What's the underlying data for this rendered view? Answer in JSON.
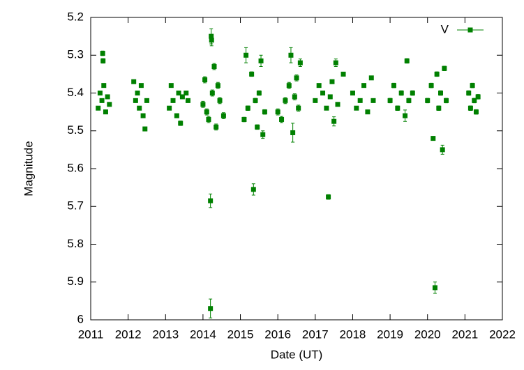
{
  "chart_data": {
    "type": "scatter",
    "xlabel": "Date (UT)",
    "ylabel": "Magnitude",
    "xlim": [
      2011,
      2022
    ],
    "xticks": [
      2011,
      2012,
      2013,
      2014,
      2015,
      2016,
      2017,
      2018,
      2019,
      2020,
      2021,
      2022
    ],
    "ylim": [
      6,
      5.2
    ],
    "yticks": [
      5.2,
      5.3,
      5.4,
      5.5,
      5.6,
      5.7,
      5.8,
      5.9,
      6
    ],
    "legend": "top right",
    "series": [
      {
        "name": "V",
        "color": "#008000",
        "x": [
          2011.2,
          2011.25,
          2011.3,
          2011.32,
          2011.33,
          2011.35,
          2011.4,
          2011.45,
          2011.5,
          2012.15,
          2012.2,
          2012.25,
          2012.3,
          2012.35,
          2012.4,
          2012.45,
          2012.5,
          2013.1,
          2013.15,
          2013.2,
          2013.3,
          2013.35,
          2013.4,
          2013.45,
          2013.55,
          2013.6,
          2014.0,
          2014.05,
          2014.1,
          2014.15,
          2014.2,
          2014.2,
          2014.22,
          2014.23,
          2014.25,
          2014.3,
          2014.35,
          2014.4,
          2014.45,
          2014.55,
          2015.1,
          2015.15,
          2015.2,
          2015.3,
          2015.35,
          2015.4,
          2015.45,
          2015.5,
          2015.55,
          2015.6,
          2015.65,
          2016.0,
          2016.1,
          2016.2,
          2016.3,
          2016.35,
          2016.4,
          2016.45,
          2016.5,
          2016.55,
          2016.6,
          2017.0,
          2017.1,
          2017.2,
          2017.3,
          2017.35,
          2017.4,
          2017.45,
          2017.5,
          2017.55,
          2017.6,
          2017.75,
          2018.0,
          2018.1,
          2018.2,
          2018.3,
          2018.4,
          2018.5,
          2018.55,
          2019.0,
          2019.1,
          2019.2,
          2019.3,
          2019.4,
          2019.45,
          2019.5,
          2019.6,
          2020.0,
          2020.1,
          2020.15,
          2020.2,
          2020.25,
          2020.3,
          2020.35,
          2020.4,
          2020.45,
          2020.5,
          2021.1,
          2021.15,
          2021.2,
          2021.25,
          2021.3,
          2021.35
        ],
        "values": [
          5.44,
          5.4,
          5.42,
          5.295,
          5.315,
          5.38,
          5.45,
          5.41,
          5.43,
          5.37,
          5.42,
          5.4,
          5.44,
          5.38,
          5.46,
          5.495,
          5.42,
          5.44,
          5.38,
          5.42,
          5.46,
          5.4,
          5.48,
          5.41,
          5.4,
          5.42,
          5.43,
          5.365,
          5.45,
          5.47,
          5.685,
          5.97,
          5.25,
          5.26,
          5.4,
          5.33,
          5.49,
          5.38,
          5.42,
          5.46,
          5.47,
          5.3,
          5.44,
          5.35,
          5.655,
          5.42,
          5.49,
          5.4,
          5.315,
          5.51,
          5.45,
          5.45,
          5.47,
          5.42,
          5.38,
          5.3,
          5.505,
          5.41,
          5.36,
          5.44,
          5.32,
          5.42,
          5.38,
          5.4,
          5.44,
          5.675,
          5.41,
          5.37,
          5.475,
          5.32,
          5.43,
          5.35,
          5.4,
          5.44,
          5.42,
          5.38,
          5.45,
          5.36,
          5.42,
          5.42,
          5.38,
          5.44,
          5.4,
          5.46,
          5.315,
          5.42,
          5.4,
          5.42,
          5.38,
          5.52,
          5.915,
          5.35,
          5.44,
          5.4,
          5.55,
          5.335,
          5.42,
          5.4,
          5.44,
          5.38,
          5.42,
          5.45,
          5.41
        ],
        "errors": [
          0.005,
          0.005,
          0.005,
          0.006,
          0.006,
          0.005,
          0.005,
          0.005,
          0.005,
          0.005,
          0.005,
          0.005,
          0.005,
          0.005,
          0.005,
          0.005,
          0.005,
          0.005,
          0.005,
          0.005,
          0.005,
          0.005,
          0.006,
          0.005,
          0.005,
          0.005,
          0.008,
          0.008,
          0.008,
          0.008,
          0.018,
          0.025,
          0.02,
          0.015,
          0.008,
          0.008,
          0.008,
          0.008,
          0.008,
          0.008,
          0.006,
          0.02,
          0.006,
          0.006,
          0.015,
          0.006,
          0.006,
          0.006,
          0.015,
          0.01,
          0.006,
          0.008,
          0.008,
          0.008,
          0.008,
          0.02,
          0.025,
          0.008,
          0.008,
          0.008,
          0.01,
          0.005,
          0.005,
          0.005,
          0.005,
          0.006,
          0.005,
          0.005,
          0.012,
          0.01,
          0.005,
          0.005,
          0.005,
          0.005,
          0.005,
          0.005,
          0.005,
          0.005,
          0.005,
          0.006,
          0.006,
          0.006,
          0.006,
          0.015,
          0.006,
          0.006,
          0.006,
          0.006,
          0.006,
          0.005,
          0.015,
          0.006,
          0.006,
          0.006,
          0.012,
          0.006,
          0.006,
          0.006,
          0.006,
          0.006,
          0.006,
          0.006,
          0.006
        ]
      }
    ]
  }
}
